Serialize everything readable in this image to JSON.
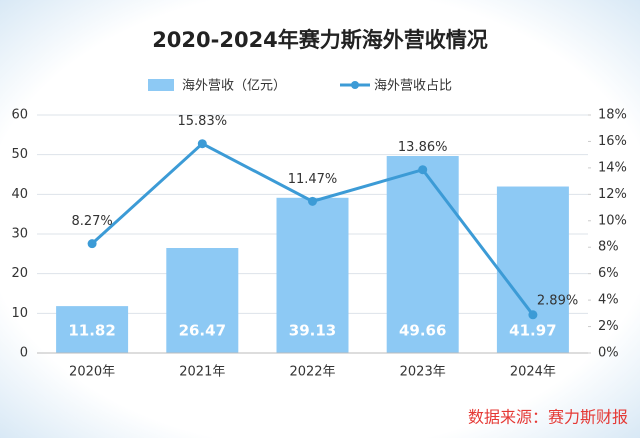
{
  "chart_data": {
    "type": "combo",
    "title": "2020-2024年赛力斯海外营收情况",
    "categories": [
      "2020年",
      "2021年",
      "2022年",
      "2023年",
      "2024年"
    ],
    "series": [
      {
        "name": "海外营收（亿元）",
        "type": "bar",
        "color": "#8dc9f4",
        "values": [
          11.82,
          26.47,
          39.13,
          49.66,
          41.97
        ]
      },
      {
        "name": "海外营收占比",
        "type": "line",
        "axis": "y2",
        "color": "#3c9bd6",
        "values": [
          8.27,
          15.83,
          11.47,
          13.86,
          2.89
        ],
        "value_labels": [
          "8.27%",
          "15.83%",
          "11.47%",
          "13.86%",
          "2.89%"
        ]
      }
    ],
    "ylim": [
      0,
      60
    ],
    "yticks": [
      0,
      10,
      20,
      30,
      40,
      50,
      60
    ],
    "y2lim": [
      0,
      18
    ],
    "y2ticks": [
      {
        "value": 0,
        "label": "0%"
      },
      {
        "value": 2,
        "label": "2%"
      },
      {
        "value": 4,
        "label": "4%"
      },
      {
        "value": 6,
        "label": "6%"
      },
      {
        "value": 8,
        "label": "8%"
      },
      {
        "value": 10,
        "label": "10%"
      },
      {
        "value": 12,
        "label": "12%"
      },
      {
        "value": 14,
        "label": "14%"
      },
      {
        "value": 16,
        "label": "16%"
      },
      {
        "value": 18,
        "label": "18%"
      }
    ],
    "grid": true,
    "source": "数据来源：赛力斯财报"
  }
}
